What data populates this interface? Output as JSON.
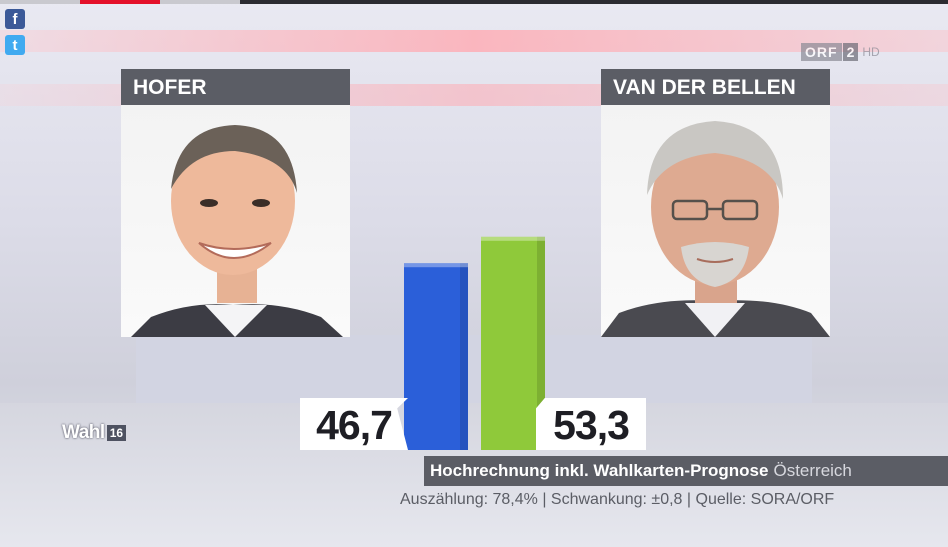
{
  "broadcaster": {
    "logo_text": "ORF",
    "channel": "2",
    "quality": "HD"
  },
  "social": {
    "facebook_glyph": "f",
    "twitter_glyph": "t"
  },
  "branding": {
    "wahl": "Wahl",
    "year": "16"
  },
  "candidates": [
    {
      "name": "HOFER"
    },
    {
      "name": "VAN DER BELLEN"
    }
  ],
  "chart_data": {
    "type": "bar",
    "title": "",
    "xlabel": "",
    "ylabel": "",
    "categories": [
      "HOFER",
      "VAN DER BELLEN"
    ],
    "values": [
      46.7,
      53.3
    ],
    "value_labels": [
      "46,7",
      "53,3"
    ],
    "colors": [
      "#2b5fd9",
      "#8fc93a"
    ],
    "ylim": [
      0,
      100
    ],
    "grid": false,
    "legend": "none"
  },
  "subtitle": {
    "bold": "Hochrechnung inkl. Wahlkarten-Prognose",
    "region": "Österreich"
  },
  "footnote": "Auszählung: 78,4% | Schwankung: ±0,8 | Quelle: SORA/ORF"
}
